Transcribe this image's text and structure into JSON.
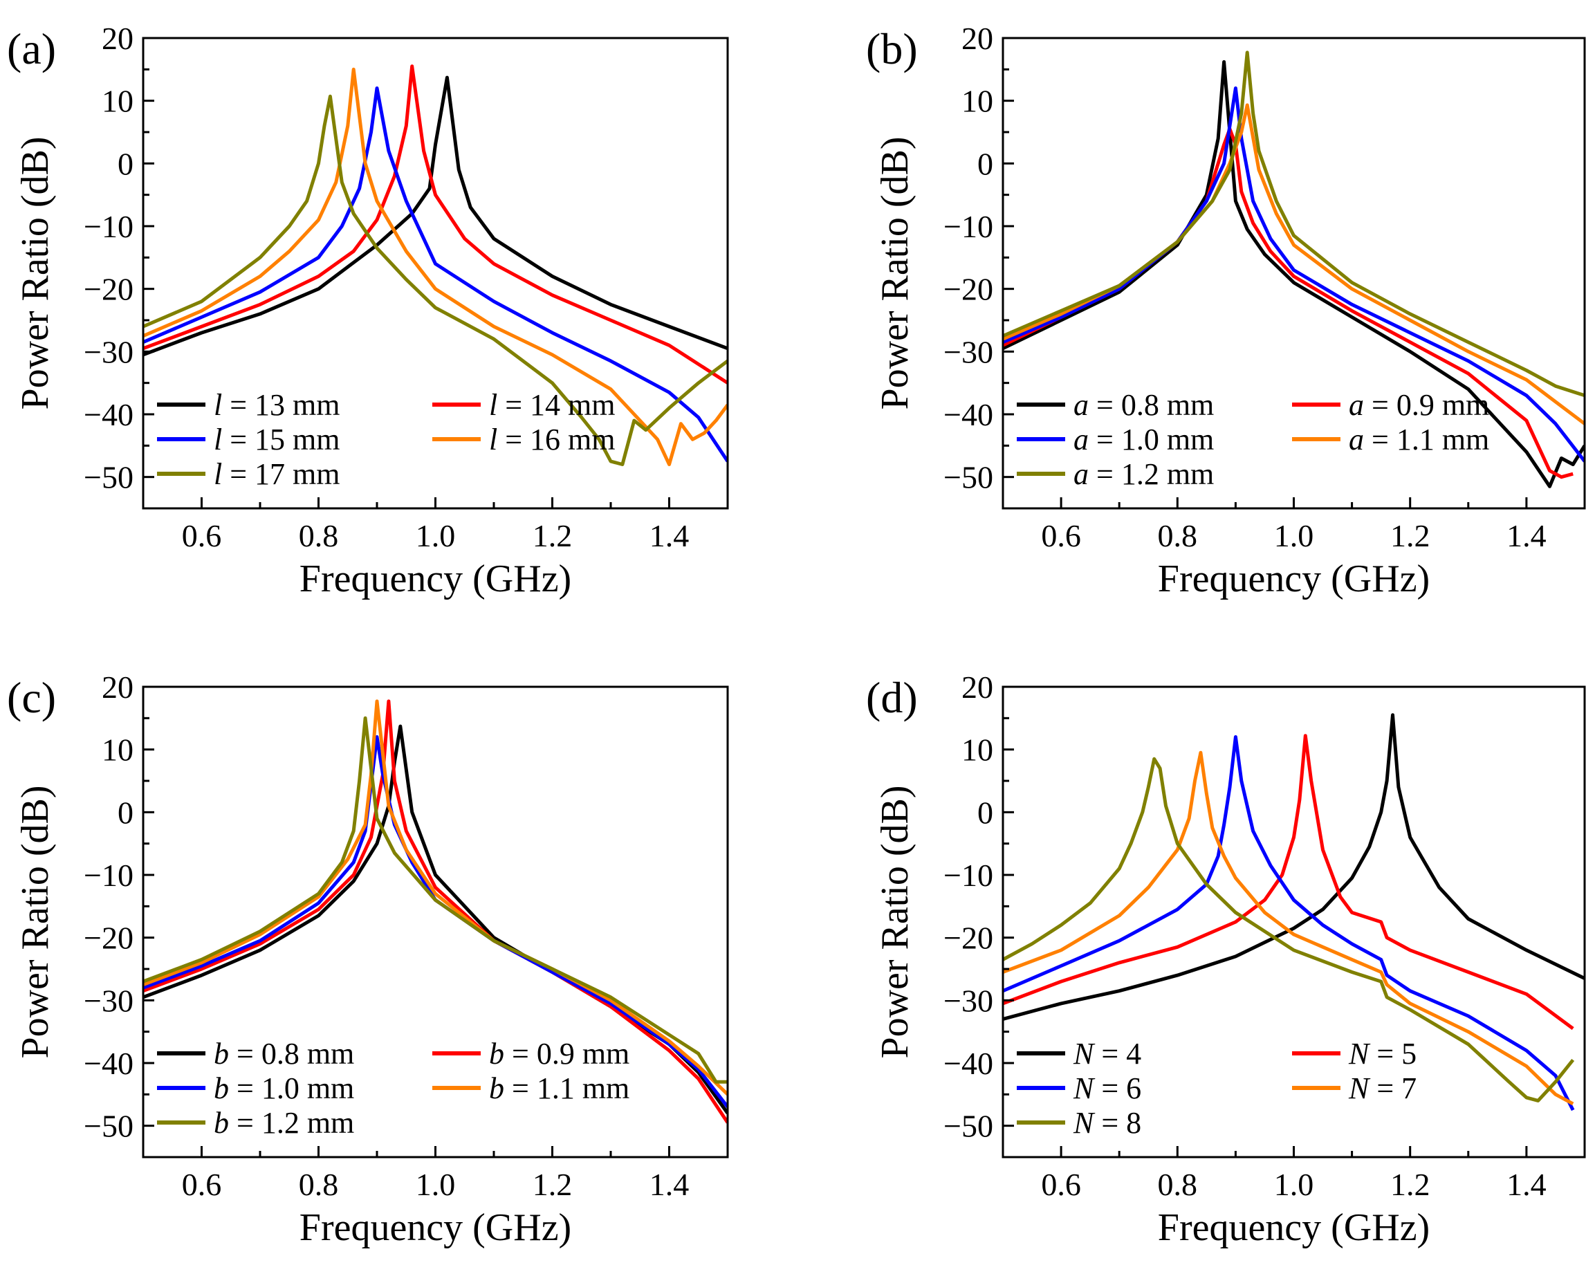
{
  "colors": {
    "black": "#000000",
    "red": "#ff0000",
    "blue": "#0000ff",
    "orange": "#ff8000",
    "olive": "#808000"
  },
  "chart_data": [
    {
      "panel": "(a)",
      "type": "line",
      "xlabel": "Frequency (GHz)",
      "ylabel": "Power Ratio (dB)",
      "xlim": [
        0.5,
        1.5
      ],
      "ylim": [
        -55,
        20
      ],
      "xticks": [
        0.6,
        0.8,
        1.0,
        1.2,
        1.4
      ],
      "xtick_labels": [
        "0.6",
        "0.8",
        "1.0",
        "1.2",
        "1.4"
      ],
      "yticks": [
        20,
        10,
        0,
        -10,
        -20,
        -30,
        -40,
        -50
      ],
      "ytick_labels": [
        "20",
        "10",
        "0",
        "−10",
        "−20",
        "−30",
        "−40",
        "−50"
      ],
      "legend_position": "bottom-left",
      "series": [
        {
          "var": "l",
          "label": " = 13 mm",
          "color": "#000000",
          "x": [
            0.5,
            0.6,
            0.7,
            0.8,
            0.9,
            0.96,
            0.99,
            1.0,
            1.02,
            1.04,
            1.06,
            1.1,
            1.2,
            1.3,
            1.4,
            1.5
          ],
          "y": [
            -30.5,
            -27,
            -24,
            -20,
            -13,
            -8,
            -4,
            3,
            13.7,
            -1,
            -7,
            -12,
            -18,
            -22.5,
            -26,
            -29.5
          ]
        },
        {
          "var": "l",
          "label": " = 14 mm",
          "color": "#ff0000",
          "x": [
            0.5,
            0.6,
            0.7,
            0.8,
            0.86,
            0.9,
            0.93,
            0.95,
            0.96,
            0.98,
            1.0,
            1.05,
            1.1,
            1.2,
            1.3,
            1.4,
            1.5
          ],
          "y": [
            -29.5,
            -26,
            -22.5,
            -18,
            -14,
            -9,
            -2,
            6,
            15.5,
            2,
            -5,
            -12,
            -16,
            -21,
            -25,
            -29,
            -35
          ]
        },
        {
          "var": "l",
          "label": " = 15 mm",
          "color": "#0000ff",
          "x": [
            0.5,
            0.6,
            0.7,
            0.8,
            0.84,
            0.87,
            0.89,
            0.9,
            0.92,
            0.95,
            1.0,
            1.1,
            1.2,
            1.3,
            1.4,
            1.45,
            1.5
          ],
          "y": [
            -28.5,
            -24.5,
            -20.5,
            -15,
            -10,
            -4,
            5,
            12,
            2,
            -6,
            -16,
            -22,
            -27,
            -31.5,
            -36.5,
            -40.5,
            -47.5
          ]
        },
        {
          "var": "l",
          "label": " = 16 mm",
          "color": "#ff8000",
          "x": [
            0.5,
            0.6,
            0.7,
            0.75,
            0.8,
            0.83,
            0.85,
            0.86,
            0.88,
            0.9,
            0.95,
            1.0,
            1.1,
            1.2,
            1.3,
            1.35,
            1.38,
            1.4,
            1.42,
            1.44,
            1.46,
            1.48,
            1.5
          ],
          "y": [
            -27.5,
            -23.5,
            -18,
            -14,
            -9,
            -3,
            6,
            15,
            0,
            -6,
            -14,
            -20,
            -26,
            -30.5,
            -36,
            -41,
            -44,
            -48,
            -41.5,
            -44,
            -43,
            -41,
            -38.5
          ]
        },
        {
          "var": "l",
          "label": " = 17 mm",
          "color": "#808000",
          "x": [
            0.5,
            0.6,
            0.7,
            0.75,
            0.78,
            0.8,
            0.81,
            0.82,
            0.84,
            0.86,
            0.9,
            0.95,
            1.0,
            1.1,
            1.2,
            1.25,
            1.28,
            1.3,
            1.32,
            1.34,
            1.36,
            1.4,
            1.45,
            1.5
          ],
          "y": [
            -26,
            -22,
            -15,
            -10,
            -6,
            0,
            6,
            10.7,
            -3,
            -8,
            -13.5,
            -18.5,
            -23,
            -28,
            -35,
            -40.5,
            -44,
            -47.5,
            -48,
            -41,
            -42.5,
            -39,
            -35,
            -31.5
          ]
        }
      ]
    },
    {
      "panel": "(b)",
      "type": "line",
      "xlabel": "Frequency (GHz)",
      "ylabel": "Power Ratio (dB)",
      "xlim": [
        0.5,
        1.5
      ],
      "ylim": [
        -55,
        20
      ],
      "xticks": [
        0.6,
        0.8,
        1.0,
        1.2,
        1.4
      ],
      "xtick_labels": [
        "0.6",
        "0.8",
        "1.0",
        "1.2",
        "1.4"
      ],
      "yticks": [
        20,
        10,
        0,
        -10,
        -20,
        -30,
        -40,
        -50
      ],
      "ytick_labels": [
        "20",
        "10",
        "0",
        "−10",
        "−20",
        "−30",
        "−40",
        "−50"
      ],
      "legend_position": "bottom-left",
      "series": [
        {
          "var": "a",
          "label": " = 0.8 mm",
          "color": "#000000",
          "x": [
            0.5,
            0.6,
            0.7,
            0.8,
            0.85,
            0.87,
            0.88,
            0.89,
            0.9,
            0.92,
            0.95,
            1.0,
            1.1,
            1.2,
            1.3,
            1.4,
            1.44,
            1.46,
            1.48,
            1.5
          ],
          "y": [
            -29.5,
            -25,
            -20.5,
            -13,
            -5,
            4,
            16.2,
            5,
            -6,
            -10.5,
            -14.5,
            -19,
            -24.5,
            -30,
            -36,
            -46,
            -51.5,
            -47,
            -48,
            -45
          ]
        },
        {
          "var": "a",
          "label": " = 0.9 mm",
          "color": "#ff0000",
          "x": [
            0.5,
            0.6,
            0.7,
            0.8,
            0.85,
            0.88,
            0.89,
            0.9,
            0.91,
            0.93,
            0.96,
            1.0,
            1.1,
            1.2,
            1.3,
            1.4,
            1.44,
            1.46,
            1.48
          ],
          "y": [
            -29,
            -24.5,
            -20,
            -12.5,
            -6,
            3,
            5.5,
            3,
            -4.5,
            -9.5,
            -14,
            -18,
            -23.5,
            -28.5,
            -33.5,
            -41,
            -49,
            -50,
            -49.5
          ]
        },
        {
          "var": "a",
          "label": " = 1.0 mm",
          "color": "#0000ff",
          "x": [
            0.5,
            0.6,
            0.7,
            0.8,
            0.85,
            0.88,
            0.9,
            0.91,
            0.93,
            0.96,
            1.0,
            1.1,
            1.2,
            1.3,
            1.4,
            1.45,
            1.5
          ],
          "y": [
            -28.5,
            -24.5,
            -20,
            -12.5,
            -6,
            0,
            12,
            4,
            -6,
            -12,
            -17,
            -22.5,
            -27,
            -31.5,
            -37,
            -41.5,
            -47.5
          ]
        },
        {
          "var": "a",
          "label": " = 1.1 mm",
          "color": "#ff8000",
          "x": [
            0.5,
            0.6,
            0.7,
            0.8,
            0.86,
            0.89,
            0.91,
            0.92,
            0.94,
            0.97,
            1.0,
            1.1,
            1.2,
            1.3,
            1.4,
            1.45,
            1.5
          ],
          "y": [
            -28,
            -24,
            -19.5,
            -12.5,
            -6,
            0,
            5,
            9.3,
            -1,
            -8,
            -13,
            -20,
            -25,
            -30,
            -34.5,
            -38,
            -41.5
          ]
        },
        {
          "var": "a",
          "label": " = 1.2 mm",
          "color": "#808000",
          "x": [
            0.5,
            0.6,
            0.7,
            0.8,
            0.86,
            0.89,
            0.91,
            0.92,
            0.93,
            0.94,
            0.97,
            1.0,
            1.1,
            1.2,
            1.3,
            1.4,
            1.45,
            1.5
          ],
          "y": [
            -27.5,
            -23.5,
            -19.5,
            -12.5,
            -6,
            -1,
            8,
            17.7,
            8,
            2,
            -6,
            -11.5,
            -19,
            -24,
            -28.5,
            -33,
            -35.5,
            -37
          ]
        }
      ]
    },
    {
      "panel": "(c)",
      "type": "line",
      "xlabel": "Frequency (GHz)",
      "ylabel": "Power Ratio (dB)",
      "xlim": [
        0.5,
        1.5
      ],
      "ylim": [
        -55,
        20
      ],
      "xticks": [
        0.6,
        0.8,
        1.0,
        1.2,
        1.4
      ],
      "xtick_labels": [
        "0.6",
        "0.8",
        "1.0",
        "1.2",
        "1.4"
      ],
      "yticks": [
        20,
        10,
        0,
        -10,
        -20,
        -30,
        -40,
        -50
      ],
      "ytick_labels": [
        "20",
        "10",
        "0",
        "−10",
        "−20",
        "−30",
        "−40",
        "−50"
      ],
      "legend_position": "bottom-left",
      "series": [
        {
          "var": "b",
          "label": " = 0.8 mm",
          "color": "#000000",
          "x": [
            0.5,
            0.6,
            0.7,
            0.8,
            0.86,
            0.9,
            0.92,
            0.93,
            0.94,
            0.96,
            1.0,
            1.1,
            1.2,
            1.3,
            1.4,
            1.45,
            1.5
          ],
          "y": [
            -29.5,
            -26,
            -22,
            -16.5,
            -11,
            -5,
            1,
            8,
            13.7,
            0,
            -10,
            -20,
            -25.5,
            -31,
            -37,
            -41.5,
            -48
          ]
        },
        {
          "var": "b",
          "label": " = 0.9 mm",
          "color": "#ff0000",
          "x": [
            0.5,
            0.6,
            0.7,
            0.8,
            0.86,
            0.89,
            0.91,
            0.92,
            0.93,
            0.95,
            1.0,
            1.1,
            1.2,
            1.3,
            1.4,
            1.45,
            1.5
          ],
          "y": [
            -28.5,
            -25,
            -21,
            -15.5,
            -10,
            -4,
            6,
            17.7,
            5,
            -3,
            -12,
            -20.5,
            -25.5,
            -31,
            -38,
            -42.5,
            -49.5
          ]
        },
        {
          "var": "b",
          "label": " = 1.0 mm",
          "color": "#0000ff",
          "x": [
            0.5,
            0.6,
            0.7,
            0.8,
            0.86,
            0.88,
            0.9,
            0.91,
            0.93,
            0.96,
            1.0,
            1.1,
            1.2,
            1.3,
            1.4,
            1.45,
            1.5
          ],
          "y": [
            -28,
            -24.5,
            -20.5,
            -14.5,
            -8,
            -3,
            12,
            6,
            -2,
            -8,
            -14,
            -20.5,
            -25.5,
            -30.5,
            -37,
            -41,
            -47
          ]
        },
        {
          "var": "b",
          "label": " = 1.1 mm",
          "color": "#ff8000",
          "x": [
            0.5,
            0.6,
            0.7,
            0.8,
            0.85,
            0.88,
            0.89,
            0.9,
            0.92,
            0.95,
            1.0,
            1.1,
            1.2,
            1.3,
            1.4,
            1.45,
            1.5
          ],
          "y": [
            -27.5,
            -24,
            -19.5,
            -13.5,
            -7.5,
            -2,
            6,
            17.7,
            1,
            -6,
            -13,
            -20.5,
            -25,
            -30,
            -36.5,
            -40.5,
            -45
          ]
        },
        {
          "var": "b",
          "label": " = 1.2 mm",
          "color": "#808000",
          "x": [
            0.5,
            0.6,
            0.7,
            0.8,
            0.84,
            0.86,
            0.87,
            0.88,
            0.9,
            0.93,
            1.0,
            1.1,
            1.2,
            1.3,
            1.4,
            1.45,
            1.48,
            1.5
          ],
          "y": [
            -27,
            -23.5,
            -19,
            -13,
            -8,
            -3,
            5,
            15,
            -1,
            -6.5,
            -14,
            -20.5,
            -25,
            -29.5,
            -35.5,
            -38.5,
            -43,
            -43
          ]
        }
      ]
    },
    {
      "panel": "(d)",
      "type": "line",
      "xlabel": "Frequency (GHz)",
      "ylabel": "Power Ratio (dB)",
      "xlim": [
        0.5,
        1.5
      ],
      "ylim": [
        -55,
        20
      ],
      "xticks": [
        0.6,
        0.8,
        1.0,
        1.2,
        1.4
      ],
      "xtick_labels": [
        "0.6",
        "0.8",
        "1.0",
        "1.2",
        "1.4"
      ],
      "yticks": [
        20,
        10,
        0,
        -10,
        -20,
        -30,
        -40,
        -50
      ],
      "ytick_labels": [
        "20",
        "10",
        "0",
        "−10",
        "−20",
        "−30",
        "−40",
        "−50"
      ],
      "legend_position": "bottom-left",
      "series": [
        {
          "var": "N",
          "label": " = 4",
          "color": "#000000",
          "x": [
            0.5,
            0.6,
            0.7,
            0.8,
            0.9,
            1.0,
            1.05,
            1.1,
            1.13,
            1.15,
            1.16,
            1.17,
            1.18,
            1.2,
            1.25,
            1.3,
            1.4,
            1.5
          ],
          "y": [
            -33,
            -30.5,
            -28.5,
            -26,
            -23,
            -18.5,
            -15.5,
            -10.5,
            -5.5,
            0,
            5,
            15.5,
            4,
            -4,
            -12,
            -17,
            -22,
            -26.5
          ]
        },
        {
          "var": "N",
          "label": " = 5",
          "color": "#ff0000",
          "x": [
            0.5,
            0.6,
            0.7,
            0.8,
            0.9,
            0.95,
            0.98,
            1.0,
            1.01,
            1.02,
            1.03,
            1.05,
            1.08,
            1.1,
            1.15,
            1.16,
            1.2,
            1.3,
            1.4,
            1.48
          ],
          "y": [
            -30.5,
            -27,
            -24,
            -21.5,
            -17.5,
            -14,
            -10,
            -4,
            2,
            12.2,
            5,
            -6,
            -13.5,
            -16,
            -17.5,
            -20,
            -22,
            -25.5,
            -29,
            -34.5
          ]
        },
        {
          "var": "N",
          "label": " = 6",
          "color": "#0000ff",
          "x": [
            0.5,
            0.6,
            0.7,
            0.8,
            0.85,
            0.87,
            0.88,
            0.89,
            0.9,
            0.91,
            0.93,
            0.96,
            1.0,
            1.05,
            1.1,
            1.15,
            1.16,
            1.2,
            1.3,
            1.4,
            1.45,
            1.48
          ],
          "y": [
            -28.5,
            -24.5,
            -20.5,
            -15.5,
            -11.5,
            -7,
            -2,
            4,
            12,
            5,
            -3,
            -8.5,
            -14,
            -18,
            -21,
            -23.5,
            -26,
            -28.5,
            -32.5,
            -38,
            -42,
            -47.5
          ]
        },
        {
          "var": "N",
          "label": " = 7",
          "color": "#ff8000",
          "x": [
            0.5,
            0.6,
            0.7,
            0.75,
            0.8,
            0.82,
            0.83,
            0.84,
            0.85,
            0.86,
            0.88,
            0.9,
            0.95,
            1.0,
            1.1,
            1.15,
            1.16,
            1.2,
            1.3,
            1.4,
            1.45,
            1.48
          ],
          "y": [
            -25.5,
            -22,
            -16.5,
            -12,
            -6,
            -1,
            5,
            9.5,
            3,
            -2.5,
            -7,
            -10.5,
            -16,
            -19.5,
            -23.5,
            -25.5,
            -27.5,
            -30.5,
            -35,
            -40.5,
            -45,
            -46.5
          ]
        },
        {
          "var": "N",
          "label": " = 8",
          "color": "#808000",
          "x": [
            0.5,
            0.55,
            0.6,
            0.65,
            0.7,
            0.72,
            0.74,
            0.75,
            0.76,
            0.77,
            0.78,
            0.8,
            0.85,
            0.9,
            1.0,
            1.1,
            1.15,
            1.16,
            1.2,
            1.3,
            1.37,
            1.4,
            1.42,
            1.45,
            1.48
          ],
          "y": [
            -23.5,
            -21,
            -18,
            -14.5,
            -9,
            -5,
            0,
            4,
            8.5,
            7,
            1,
            -5,
            -11.5,
            -16,
            -22,
            -25.5,
            -27,
            -29.5,
            -31.5,
            -37,
            -43,
            -45.5,
            -46,
            -43,
            -39.5
          ]
        }
      ]
    }
  ]
}
